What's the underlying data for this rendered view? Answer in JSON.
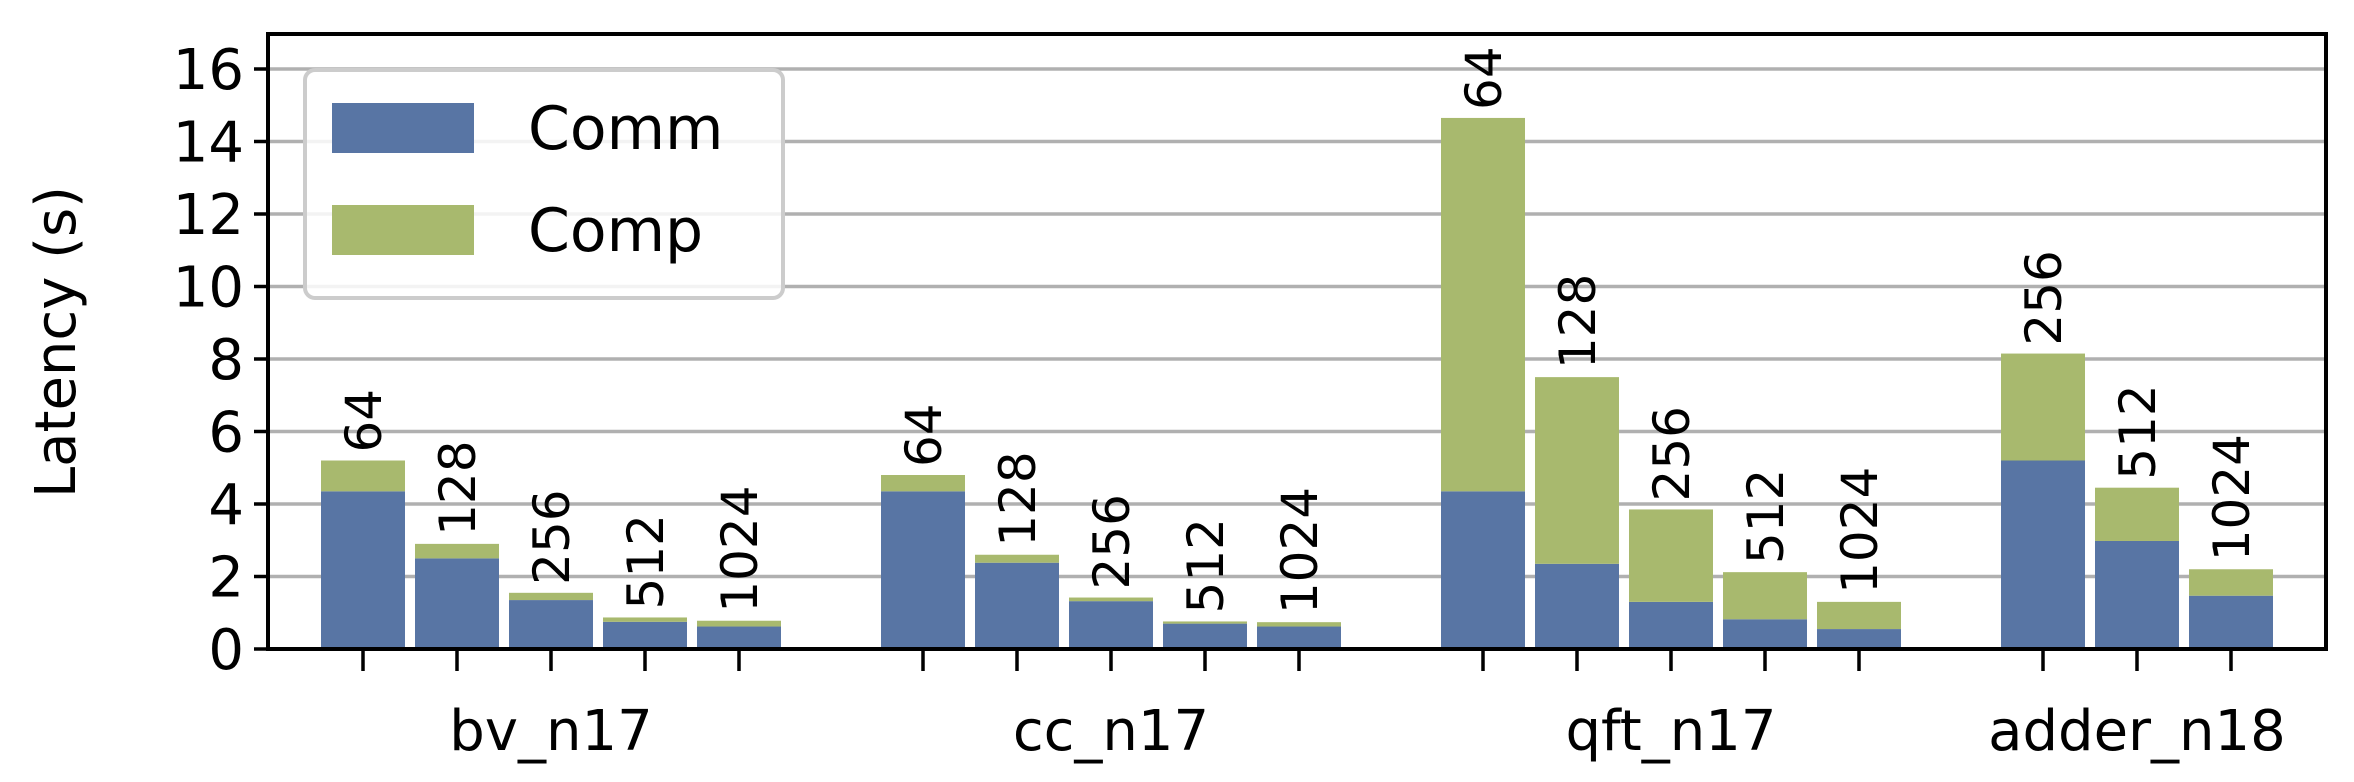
{
  "chart_data": {
    "type": "bar",
    "stacked": true,
    "ylabel": "Latency (s)",
    "xlabel": "",
    "ylim": [
      0,
      17
    ],
    "yticks": [
      0,
      2,
      4,
      6,
      8,
      10,
      12,
      14,
      16
    ],
    "grid": true,
    "legend_position": "top-left",
    "colors": {
      "Comm": "#5875a4",
      "Comp": "#a8b96e"
    },
    "legend": [
      "Comm",
      "Comp"
    ],
    "groups": [
      {
        "name": "bv_n17",
        "bars": [
          {
            "label": "64",
            "comm": 4.35,
            "comp": 0.85
          },
          {
            "label": "128",
            "comm": 2.5,
            "comp": 0.4
          },
          {
            "label": "256",
            "comm": 1.35,
            "comp": 0.2
          },
          {
            "label": "512",
            "comm": 0.75,
            "comp": 0.12
          },
          {
            "label": "1024",
            "comm": 0.62,
            "comp": 0.16
          }
        ]
      },
      {
        "name": "cc_n17",
        "bars": [
          {
            "label": "64",
            "comm": 4.35,
            "comp": 0.45
          },
          {
            "label": "128",
            "comm": 2.38,
            "comp": 0.22
          },
          {
            "label": "256",
            "comm": 1.32,
            "comp": 0.1
          },
          {
            "label": "512",
            "comm": 0.7,
            "comp": 0.06
          },
          {
            "label": "1024",
            "comm": 0.62,
            "comp": 0.12
          }
        ]
      },
      {
        "name": "qft_n17",
        "bars": [
          {
            "label": "64",
            "comm": 4.35,
            "comp": 10.3
          },
          {
            "label": "128",
            "comm": 2.35,
            "comp": 5.15
          },
          {
            "label": "256",
            "comm": 1.3,
            "comp": 2.55
          },
          {
            "label": "512",
            "comm": 0.82,
            "comp": 1.3
          },
          {
            "label": "1024",
            "comm": 0.55,
            "comp": 0.75
          }
        ]
      },
      {
        "name": "adder_n18",
        "bars": [
          {
            "label": "256",
            "comm": 5.2,
            "comp": 2.95
          },
          {
            "label": "512",
            "comm": 2.98,
            "comp": 1.47
          },
          {
            "label": "1024",
            "comm": 1.47,
            "comp": 0.73
          }
        ]
      }
    ]
  }
}
